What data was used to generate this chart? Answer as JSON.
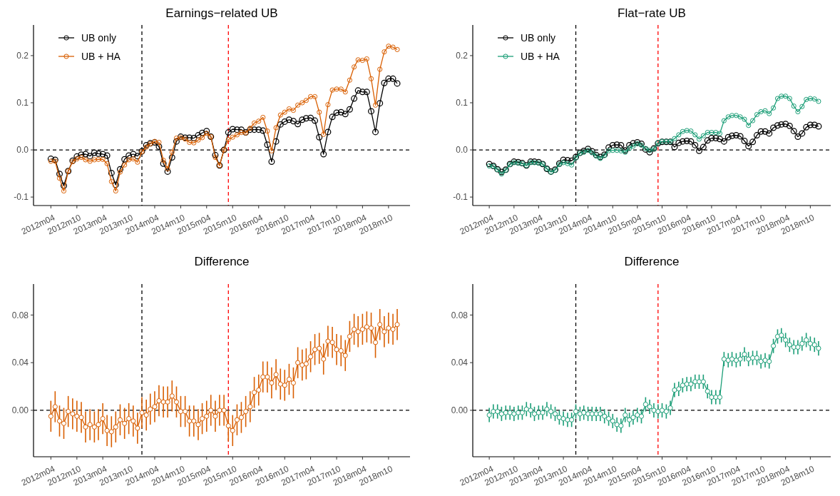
{
  "chart_data": [
    {
      "type": "line",
      "title": "Earnings−related UB",
      "marker": "circle",
      "line_style": "solid",
      "legend": "top left",
      "x": [
        "2012-04",
        "2012-05",
        "2012-06",
        "2012-07",
        "2012-08",
        "2012-09",
        "2012-10",
        "2012-11",
        "2012-12",
        "2013-01",
        "2013-02",
        "2013-03",
        "2013-04",
        "2013-05",
        "2013-06",
        "2013-07",
        "2013-08",
        "2013-09",
        "2013-10",
        "2013-11",
        "2013-12",
        "2014-01",
        "2014-02",
        "2014-03",
        "2014-04",
        "2014-05",
        "2014-06",
        "2014-07",
        "2014-08",
        "2014-09",
        "2014-10",
        "2014-11",
        "2014-12",
        "2015-01",
        "2015-02",
        "2015-03",
        "2015-04",
        "2015-05",
        "2015-06",
        "2015-07",
        "2015-08",
        "2015-09",
        "2015-10",
        "2015-11",
        "2015-12",
        "2016-01",
        "2016-02",
        "2016-03",
        "2016-04",
        "2016-05",
        "2016-06",
        "2016-07",
        "2016-08",
        "2016-09",
        "2016-10",
        "2016-11",
        "2016-12",
        "2017-01",
        "2017-02",
        "2017-03",
        "2017-04",
        "2017-05",
        "2017-06",
        "2017-07",
        "2017-08",
        "2017-09",
        "2017-10",
        "2017-11",
        "2017-12",
        "2018-01",
        "2018-02",
        "2018-03",
        "2018-04",
        "2018-05",
        "2018-06",
        "2018-07",
        "2018-08",
        "2018-09",
        "2018-10",
        "2018-11",
        "2018-12"
      ],
      "xlim": [
        "2011-12",
        "2019-03"
      ],
      "xticks": [
        {
          "value": "2012-04",
          "label": "2012m04"
        },
        {
          "value": "2012-10",
          "label": "2012m10"
        },
        {
          "value": "2013-04",
          "label": "2013m04"
        },
        {
          "value": "2013-10",
          "label": "2013m10"
        },
        {
          "value": "2014-04",
          "label": "2014m04"
        },
        {
          "value": "2014-10",
          "label": "2014m10"
        },
        {
          "value": "2015-04",
          "label": "2015m04"
        },
        {
          "value": "2015-10",
          "label": "2015m10"
        },
        {
          "value": "2016-04",
          "label": "2016m04"
        },
        {
          "value": "2016-10",
          "label": "2016m10"
        },
        {
          "value": "2017-04",
          "label": "2017m04"
        },
        {
          "value": "2017-10",
          "label": "2017m10"
        },
        {
          "value": "2018-04",
          "label": "2018m04"
        },
        {
          "value": "2018-10",
          "label": "2018m10"
        }
      ],
      "ylim": [
        -0.118,
        0.265
      ],
      "yticks": [
        -0.1,
        {
          "value": 0,
          "label": "0.0"
        },
        0.1,
        0.2
      ],
      "ref_lines": [
        {
          "axis": "y",
          "value": 0,
          "color": "#000000",
          "line_style": "dashed"
        },
        {
          "axis": "x",
          "value": "2014-01",
          "color": "#000000",
          "line_style": "dashed"
        },
        {
          "axis": "x",
          "value": "2015-09",
          "color": "#ff0000",
          "line_style": "dashed"
        }
      ],
      "series": [
        {
          "name": "UB only",
          "color": "#000000",
          "values": [
            -0.019,
            -0.021,
            -0.051,
            -0.076,
            -0.045,
            -0.023,
            -0.014,
            -0.01,
            -0.009,
            -0.013,
            -0.006,
            -0.008,
            -0.009,
            -0.012,
            -0.049,
            -0.074,
            -0.041,
            -0.02,
            -0.012,
            -0.009,
            -0.013,
            -0.003,
            0.01,
            0.014,
            0.016,
            0.007,
            -0.029,
            -0.046,
            -0.016,
            0.018,
            0.028,
            0.026,
            0.026,
            0.025,
            0.031,
            0.036,
            0.04,
            0.028,
            -0.011,
            -0.033,
            0.0,
            0.037,
            0.044,
            0.043,
            0.043,
            0.037,
            0.043,
            0.043,
            0.043,
            0.041,
            0.011,
            -0.025,
            0.018,
            0.054,
            0.06,
            0.064,
            0.061,
            0.055,
            0.064,
            0.067,
            0.068,
            0.062,
            0.027,
            -0.009,
            0.038,
            0.07,
            0.079,
            0.08,
            0.076,
            0.086,
            0.109,
            0.126,
            0.123,
            0.123,
            0.082,
            0.038,
            0.099,
            0.142,
            0.151,
            0.151,
            0.141
          ]
        },
        {
          "name": "UB + HA",
          "color": "#d95f02",
          "values": [
            -0.024,
            -0.024,
            -0.06,
            -0.087,
            -0.045,
            -0.025,
            -0.019,
            -0.016,
            -0.021,
            -0.024,
            -0.021,
            -0.02,
            -0.02,
            -0.029,
            -0.067,
            -0.087,
            -0.047,
            -0.032,
            -0.021,
            -0.019,
            -0.026,
            -0.004,
            0.006,
            0.013,
            0.018,
            0.016,
            -0.022,
            -0.04,
            -0.005,
            0.025,
            0.026,
            0.023,
            0.016,
            0.015,
            0.021,
            0.026,
            0.035,
            0.028,
            -0.016,
            -0.033,
            0.0,
            0.022,
            0.027,
            0.032,
            0.037,
            0.036,
            0.046,
            0.057,
            0.061,
            0.069,
            0.04,
            -0.002,
            0.047,
            0.074,
            0.08,
            0.087,
            0.084,
            0.095,
            0.1,
            0.105,
            0.113,
            0.113,
            0.08,
            0.033,
            0.096,
            0.127,
            0.129,
            0.129,
            0.123,
            0.148,
            0.176,
            0.191,
            0.19,
            0.193,
            0.151,
            0.095,
            0.171,
            0.208,
            0.22,
            0.218,
            0.213
          ]
        }
      ]
    },
    {
      "type": "line",
      "title": "Flat−rate UB",
      "marker": "circle",
      "line_style": "solid",
      "legend": "top left",
      "x": [
        "2012-04",
        "2012-05",
        "2012-06",
        "2012-07",
        "2012-08",
        "2012-09",
        "2012-10",
        "2012-11",
        "2012-12",
        "2013-01",
        "2013-02",
        "2013-03",
        "2013-04",
        "2013-05",
        "2013-06",
        "2013-07",
        "2013-08",
        "2013-09",
        "2013-10",
        "2013-11",
        "2013-12",
        "2014-01",
        "2014-02",
        "2014-03",
        "2014-04",
        "2014-05",
        "2014-06",
        "2014-07",
        "2014-08",
        "2014-09",
        "2014-10",
        "2014-11",
        "2014-12",
        "2015-01",
        "2015-02",
        "2015-03",
        "2015-04",
        "2015-05",
        "2015-06",
        "2015-07",
        "2015-08",
        "2015-09",
        "2015-10",
        "2015-11",
        "2015-12",
        "2016-01",
        "2016-02",
        "2016-03",
        "2016-04",
        "2016-05",
        "2016-06",
        "2016-07",
        "2016-08",
        "2016-09",
        "2016-10",
        "2016-11",
        "2016-12",
        "2017-01",
        "2017-02",
        "2017-03",
        "2017-04",
        "2017-05",
        "2017-06",
        "2017-07",
        "2017-08",
        "2017-09",
        "2017-10",
        "2017-11",
        "2017-12",
        "2018-01",
        "2018-02",
        "2018-03",
        "2018-04",
        "2018-05",
        "2018-06",
        "2018-07",
        "2018-08",
        "2018-09",
        "2018-10",
        "2018-11",
        "2018-12"
      ],
      "xlim": [
        "2011-12",
        "2019-03"
      ],
      "xticks": [
        {
          "value": "2012-04",
          "label": "2012m04"
        },
        {
          "value": "2012-10",
          "label": "2012m10"
        },
        {
          "value": "2013-04",
          "label": "2013m04"
        },
        {
          "value": "2013-10",
          "label": "2013m10"
        },
        {
          "value": "2014-04",
          "label": "2014m04"
        },
        {
          "value": "2014-10",
          "label": "2014m10"
        },
        {
          "value": "2015-04",
          "label": "2015m04"
        },
        {
          "value": "2015-10",
          "label": "2015m10"
        },
        {
          "value": "2016-04",
          "label": "2016m04"
        },
        {
          "value": "2016-10",
          "label": "2016m10"
        },
        {
          "value": "2017-04",
          "label": "2017m04"
        },
        {
          "value": "2017-10",
          "label": "2017m10"
        },
        {
          "value": "2018-04",
          "label": "2018m04"
        },
        {
          "value": "2018-10",
          "label": "2018m10"
        }
      ],
      "ylim": [
        -0.118,
        0.265
      ],
      "yticks": [
        -0.1,
        {
          "value": 0,
          "label": "0.0"
        },
        0.1,
        0.2
      ],
      "ref_lines": [
        {
          "axis": "y",
          "value": 0,
          "color": "#000000",
          "line_style": "dashed"
        },
        {
          "axis": "x",
          "value": "2014-01",
          "color": "#000000",
          "line_style": "dashed"
        },
        {
          "axis": "x",
          "value": "2015-09",
          "color": "#ff0000",
          "line_style": "dashed"
        }
      ],
      "series": [
        {
          "name": "UB only",
          "color": "#000000",
          "values": [
            -0.03,
            -0.034,
            -0.041,
            -0.047,
            -0.042,
            -0.03,
            -0.025,
            -0.026,
            -0.028,
            -0.033,
            -0.025,
            -0.025,
            -0.026,
            -0.03,
            -0.04,
            -0.046,
            -0.042,
            -0.029,
            -0.021,
            -0.022,
            -0.023,
            -0.015,
            -0.006,
            -0.002,
            0.002,
            -0.003,
            -0.011,
            -0.015,
            -0.01,
            0.005,
            0.01,
            0.011,
            0.01,
            -0.001,
            0.01,
            0.014,
            0.016,
            0.013,
            0.001,
            -0.005,
            0.003,
            0.014,
            0.017,
            0.017,
            0.017,
            0.006,
            0.015,
            0.018,
            0.019,
            0.018,
            0.01,
            -0.002,
            0.006,
            0.02,
            0.025,
            0.025,
            0.023,
            0.018,
            0.027,
            0.03,
            0.031,
            0.029,
            0.019,
            0.008,
            0.017,
            0.031,
            0.039,
            0.039,
            0.035,
            0.047,
            0.052,
            0.054,
            0.055,
            0.051,
            0.04,
            0.028,
            0.035,
            0.048,
            0.053,
            0.053,
            0.05
          ]
        },
        {
          "name": "UB + HA",
          "color": "#1b9e77",
          "values": [
            -0.034,
            -0.035,
            -0.042,
            -0.051,
            -0.043,
            -0.031,
            -0.027,
            -0.028,
            -0.029,
            -0.033,
            -0.027,
            -0.027,
            -0.028,
            -0.03,
            -0.04,
            -0.047,
            -0.043,
            -0.031,
            -0.027,
            -0.029,
            -0.032,
            -0.017,
            -0.007,
            -0.005,
            -0.001,
            -0.006,
            -0.013,
            -0.018,
            -0.012,
            -0.002,
            -0.001,
            -0.001,
            -0.002,
            -0.005,
            0.003,
            0.008,
            0.013,
            0.01,
            0.003,
            -0.001,
            0.002,
            0.015,
            0.018,
            0.018,
            0.018,
            0.024,
            0.032,
            0.039,
            0.041,
            0.04,
            0.032,
            0.023,
            0.03,
            0.037,
            0.037,
            0.037,
            0.035,
            0.062,
            0.07,
            0.073,
            0.073,
            0.07,
            0.065,
            0.052,
            0.062,
            0.075,
            0.081,
            0.083,
            0.077,
            0.089,
            0.109,
            0.114,
            0.114,
            0.109,
            0.093,
            0.081,
            0.092,
            0.107,
            0.109,
            0.108,
            0.103
          ]
        }
      ]
    },
    {
      "type": "line",
      "title": "Difference",
      "marker": "circle",
      "line_style": "solid",
      "x": [
        "2012-04",
        "2012-05",
        "2012-06",
        "2012-07",
        "2012-08",
        "2012-09",
        "2012-10",
        "2012-11",
        "2012-12",
        "2013-01",
        "2013-02",
        "2013-03",
        "2013-04",
        "2013-05",
        "2013-06",
        "2013-07",
        "2013-08",
        "2013-09",
        "2013-10",
        "2013-11",
        "2013-12",
        "2014-01",
        "2014-02",
        "2014-03",
        "2014-04",
        "2014-05",
        "2014-06",
        "2014-07",
        "2014-08",
        "2014-09",
        "2014-10",
        "2014-11",
        "2014-12",
        "2015-01",
        "2015-02",
        "2015-03",
        "2015-04",
        "2015-05",
        "2015-06",
        "2015-07",
        "2015-08",
        "2015-09",
        "2015-10",
        "2015-11",
        "2015-12",
        "2016-01",
        "2016-02",
        "2016-03",
        "2016-04",
        "2016-05",
        "2016-06",
        "2016-07",
        "2016-08",
        "2016-09",
        "2016-10",
        "2016-11",
        "2016-12",
        "2017-01",
        "2017-02",
        "2017-03",
        "2017-04",
        "2017-05",
        "2017-06",
        "2017-07",
        "2017-08",
        "2017-09",
        "2017-10",
        "2017-11",
        "2017-12",
        "2018-01",
        "2018-02",
        "2018-03",
        "2018-04",
        "2018-05",
        "2018-06",
        "2018-07",
        "2018-08",
        "2018-09",
        "2018-10",
        "2018-11",
        "2018-12"
      ],
      "xlim": [
        "2011-12",
        "2019-03"
      ],
      "xticks": [
        {
          "value": "2012-04",
          "label": "2012m04"
        },
        {
          "value": "2012-10",
          "label": "2012m10"
        },
        {
          "value": "2013-04",
          "label": "2013m04"
        },
        {
          "value": "2013-10",
          "label": "2013m10"
        },
        {
          "value": "2014-04",
          "label": "2014m04"
        },
        {
          "value": "2014-10",
          "label": "2014m10"
        },
        {
          "value": "2015-04",
          "label": "2015m04"
        },
        {
          "value": "2015-10",
          "label": "2015m10"
        },
        {
          "value": "2016-04",
          "label": "2016m04"
        },
        {
          "value": "2016-10",
          "label": "2016m10"
        },
        {
          "value": "2017-04",
          "label": "2017m04"
        },
        {
          "value": "2017-10",
          "label": "2017m10"
        },
        {
          "value": "2018-04",
          "label": "2018m04"
        },
        {
          "value": "2018-10",
          "label": "2018m10"
        }
      ],
      "ylim": [
        -0.039,
        0.106
      ],
      "yticks": [
        {
          "value": 0,
          "label": "0.00"
        },
        {
          "value": 0.04,
          "label": "0.04"
        },
        {
          "value": 0.08,
          "label": "0.08"
        }
      ],
      "ref_lines": [
        {
          "axis": "y",
          "value": 0,
          "color": "#000000",
          "line_style": "dashed"
        },
        {
          "axis": "x",
          "value": "2014-01",
          "color": "#000000",
          "line_style": "dashed"
        },
        {
          "axis": "x",
          "value": "2015-09",
          "color": "#ff0000",
          "line_style": "dashed"
        }
      ],
      "series": [
        {
          "color": "#d95f02",
          "values": [
            -0.005,
            0.003,
            -0.009,
            -0.011,
            -0.001,
            -0.003,
            -0.005,
            -0.006,
            -0.014,
            -0.012,
            -0.014,
            -0.012,
            -0.007,
            -0.017,
            -0.018,
            -0.014,
            -0.008,
            -0.011,
            -0.007,
            -0.009,
            -0.015,
            -0.002,
            -0.004,
            0.001,
            0.003,
            0.008,
            0.007,
            0.007,
            0.012,
            0.007,
            -0.001,
            -0.001,
            -0.009,
            -0.009,
            -0.012,
            -0.007,
            -0.005,
            0.0,
            -0.005,
            0.0,
            0.0,
            -0.013,
            -0.017,
            -0.008,
            -0.006,
            -0.001,
            0.003,
            0.015,
            0.017,
            0.028,
            0.028,
            0.023,
            0.03,
            0.022,
            0.021,
            0.026,
            0.023,
            0.04,
            0.038,
            0.039,
            0.045,
            0.051,
            0.052,
            0.043,
            0.058,
            0.057,
            0.051,
            0.05,
            0.046,
            0.062,
            0.068,
            0.066,
            0.068,
            0.07,
            0.069,
            0.057,
            0.072,
            0.066,
            0.069,
            0.068,
            0.072
          ],
          "errors": [
            0.013,
            0.013,
            0.013,
            0.013,
            0.013,
            0.013,
            0.013,
            0.013,
            0.013,
            0.013,
            0.013,
            0.013,
            0.013,
            0.013,
            0.013,
            0.013,
            0.013,
            0.013,
            0.013,
            0.013,
            0.013,
            0.013,
            0.013,
            0.013,
            0.013,
            0.013,
            0.013,
            0.013,
            0.013,
            0.013,
            0.013,
            0.013,
            0.013,
            0.013,
            0.013,
            0.013,
            0.013,
            0.013,
            0.013,
            0.013,
            0.013,
            0.013,
            0.013,
            0.013,
            0.013,
            0.013,
            0.013,
            0.013,
            0.013,
            0.013,
            0.013,
            0.013,
            0.013,
            0.013,
            0.013,
            0.013,
            0.013,
            0.013,
            0.013,
            0.013,
            0.013,
            0.013,
            0.013,
            0.013,
            0.013,
            0.013,
            0.013,
            0.013,
            0.013,
            0.013,
            0.013,
            0.013,
            0.013,
            0.013,
            0.013,
            0.013,
            0.013,
            0.013,
            0.013,
            0.013,
            0.013
          ]
        }
      ]
    },
    {
      "type": "line",
      "title": "Difference",
      "marker": "circle",
      "line_style": "solid",
      "x": [
        "2012-04",
        "2012-05",
        "2012-06",
        "2012-07",
        "2012-08",
        "2012-09",
        "2012-10",
        "2012-11",
        "2012-12",
        "2013-01",
        "2013-02",
        "2013-03",
        "2013-04",
        "2013-05",
        "2013-06",
        "2013-07",
        "2013-08",
        "2013-09",
        "2013-10",
        "2013-11",
        "2013-12",
        "2014-01",
        "2014-02",
        "2014-03",
        "2014-04",
        "2014-05",
        "2014-06",
        "2014-07",
        "2014-08",
        "2014-09",
        "2014-10",
        "2014-11",
        "2014-12",
        "2015-01",
        "2015-02",
        "2015-03",
        "2015-04",
        "2015-05",
        "2015-06",
        "2015-07",
        "2015-08",
        "2015-09",
        "2015-10",
        "2015-11",
        "2015-12",
        "2016-01",
        "2016-02",
        "2016-03",
        "2016-04",
        "2016-05",
        "2016-06",
        "2016-07",
        "2016-08",
        "2016-09",
        "2016-10",
        "2016-11",
        "2016-12",
        "2017-01",
        "2017-02",
        "2017-03",
        "2017-04",
        "2017-05",
        "2017-06",
        "2017-07",
        "2017-08",
        "2017-09",
        "2017-10",
        "2017-11",
        "2017-12",
        "2018-01",
        "2018-02",
        "2018-03",
        "2018-04",
        "2018-05",
        "2018-06",
        "2018-07",
        "2018-08",
        "2018-09",
        "2018-10",
        "2018-11",
        "2018-12"
      ],
      "xlim": [
        "2011-12",
        "2019-03"
      ],
      "xticks": [
        {
          "value": "2012-04",
          "label": "2012m04"
        },
        {
          "value": "2012-10",
          "label": "2012m10"
        },
        {
          "value": "2013-04",
          "label": "2013m04"
        },
        {
          "value": "2013-10",
          "label": "2013m10"
        },
        {
          "value": "2014-04",
          "label": "2014m04"
        },
        {
          "value": "2014-10",
          "label": "2014m10"
        },
        {
          "value": "2015-04",
          "label": "2015m04"
        },
        {
          "value": "2015-10",
          "label": "2015m10"
        },
        {
          "value": "2016-04",
          "label": "2016m04"
        },
        {
          "value": "2016-10",
          "label": "2016m10"
        },
        {
          "value": "2017-04",
          "label": "2017m04"
        },
        {
          "value": "2017-10",
          "label": "2017m10"
        },
        {
          "value": "2018-04",
          "label": "2018m04"
        },
        {
          "value": "2018-10",
          "label": "2018m10"
        }
      ],
      "ylim": [
        -0.039,
        0.106
      ],
      "yticks": [
        {
          "value": 0,
          "label": "0.00"
        },
        {
          "value": 0.04,
          "label": "0.04"
        },
        {
          "value": 0.08,
          "label": "0.08"
        }
      ],
      "ref_lines": [
        {
          "axis": "y",
          "value": 0,
          "color": "#000000",
          "line_style": "dashed"
        },
        {
          "axis": "x",
          "value": "2014-01",
          "color": "#000000",
          "line_style": "dashed"
        },
        {
          "axis": "x",
          "value": "2015-09",
          "color": "#ff0000",
          "line_style": "dashed"
        }
      ],
      "series": [
        {
          "color": "#1b9e77",
          "values": [
            -0.004,
            -0.001,
            -0.001,
            -0.003,
            -0.002,
            -0.002,
            -0.003,
            -0.002,
            -0.002,
            0.001,
            0.0,
            -0.003,
            -0.002,
            -0.002,
            0.001,
            -0.001,
            -0.003,
            -0.006,
            -0.007,
            -0.008,
            -0.008,
            -0.001,
            -0.003,
            -0.002,
            -0.003,
            -0.003,
            -0.003,
            -0.003,
            -0.005,
            -0.007,
            -0.009,
            -0.012,
            -0.013,
            -0.004,
            -0.008,
            -0.006,
            -0.004,
            -0.005,
            0.005,
            0.003,
            0.0,
            -0.001,
            0.0,
            -0.001,
            0.002,
            0.017,
            0.018,
            0.021,
            0.022,
            0.022,
            0.024,
            0.024,
            0.024,
            0.016,
            0.011,
            0.011,
            0.011,
            0.043,
            0.042,
            0.043,
            0.042,
            0.043,
            0.047,
            0.043,
            0.044,
            0.044,
            0.041,
            0.042,
            0.041,
            0.054,
            0.062,
            0.063,
            0.059,
            0.055,
            0.053,
            0.053,
            0.056,
            0.059,
            0.056,
            0.055,
            0.052
          ],
          "errors": [
            0.006,
            0.006,
            0.006,
            0.006,
            0.006,
            0.006,
            0.006,
            0.006,
            0.006,
            0.006,
            0.006,
            0.006,
            0.006,
            0.006,
            0.006,
            0.006,
            0.006,
            0.006,
            0.006,
            0.006,
            0.006,
            0.006,
            0.006,
            0.006,
            0.006,
            0.006,
            0.006,
            0.006,
            0.006,
            0.006,
            0.006,
            0.006,
            0.006,
            0.006,
            0.006,
            0.006,
            0.006,
            0.006,
            0.006,
            0.006,
            0.006,
            0.006,
            0.006,
            0.006,
            0.006,
            0.006,
            0.006,
            0.006,
            0.006,
            0.006,
            0.006,
            0.006,
            0.006,
            0.006,
            0.006,
            0.006,
            0.006,
            0.006,
            0.006,
            0.006,
            0.006,
            0.006,
            0.006,
            0.006,
            0.006,
            0.006,
            0.006,
            0.006,
            0.006,
            0.006,
            0.006,
            0.006,
            0.006,
            0.006,
            0.006,
            0.006,
            0.006,
            0.006,
            0.006,
            0.006,
            0.006
          ]
        }
      ]
    }
  ]
}
